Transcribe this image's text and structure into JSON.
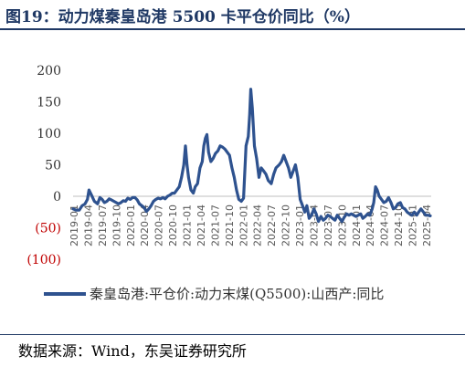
{
  "figure": {
    "title": "图19：动力煤秦皇岛港 5500 卡平仓价同比（%）",
    "source": "数据来源：Wind，东吴证券研究所"
  },
  "colors": {
    "series": "#2e528f",
    "negative_label": "#c00000",
    "axis": "#333333",
    "title": "#1f3864"
  },
  "chart_data": {
    "type": "line",
    "title": "",
    "xlabel": "",
    "ylabel": "",
    "ylim": [
      -100,
      200
    ],
    "yticks": [
      {
        "value": 200,
        "label": "200",
        "negative": false
      },
      {
        "value": 150,
        "label": "150",
        "negative": false
      },
      {
        "value": 100,
        "label": "100",
        "negative": false
      },
      {
        "value": 50,
        "label": "50",
        "negative": false
      },
      {
        "value": 0,
        "label": "0",
        "negative": false
      },
      {
        "value": -50,
        "label": "(50)",
        "negative": true
      },
      {
        "value": -100,
        "label": "(100)",
        "negative": true
      }
    ],
    "x_tick_labels": [
      "2019-01",
      "2019-04",
      "2019-07",
      "2019-10",
      "2020-01",
      "2020-04",
      "2020-07",
      "2020-10",
      "2021-01",
      "2021-04",
      "2021-07",
      "2021-10",
      "2022-01",
      "2022-04",
      "2022-07",
      "2022-10",
      "2023-01",
      "2023-04",
      "2023-07",
      "2023-10",
      "2024-01",
      "2024-04",
      "2024-07",
      "2024-10",
      "2025-01",
      "2025-04"
    ],
    "x_range": [
      "2019-01-01",
      "2025-05-31"
    ],
    "grid": false,
    "legend_position": "bottom",
    "series": [
      {
        "name": "秦皇岛港:平仓价:动力末煤(Q5500):山西产:同比",
        "points": [
          [
            "2019-01-01",
            -20
          ],
          [
            "2019-01-20",
            -22
          ],
          [
            "2019-02-10",
            -22
          ],
          [
            "2019-03-01",
            -15
          ],
          [
            "2019-03-20",
            -12
          ],
          [
            "2019-04-05",
            -5
          ],
          [
            "2019-04-15",
            10
          ],
          [
            "2019-05-01",
            2
          ],
          [
            "2019-05-20",
            -8
          ],
          [
            "2019-06-10",
            -12
          ],
          [
            "2019-06-25",
            -2
          ],
          [
            "2019-07-10",
            -5
          ],
          [
            "2019-07-25",
            -10
          ],
          [
            "2019-08-10",
            -8
          ],
          [
            "2019-08-25",
            -4
          ],
          [
            "2019-09-10",
            -6
          ],
          [
            "2019-09-25",
            -8
          ],
          [
            "2019-10-10",
            -10
          ],
          [
            "2019-10-25",
            -12
          ],
          [
            "2019-11-10",
            -10
          ],
          [
            "2019-11-25",
            -7
          ],
          [
            "2019-12-10",
            -8
          ],
          [
            "2019-12-25",
            -3
          ],
          [
            "2020-01-10",
            -5
          ],
          [
            "2020-01-25",
            -2
          ],
          [
            "2020-02-10",
            -2
          ],
          [
            "2020-02-25",
            -6
          ],
          [
            "2020-03-10",
            -12
          ],
          [
            "2020-03-25",
            -15
          ],
          [
            "2020-04-10",
            -18
          ],
          [
            "2020-04-25",
            -24
          ],
          [
            "2020-05-10",
            -20
          ],
          [
            "2020-05-25",
            -15
          ],
          [
            "2020-06-10",
            -8
          ],
          [
            "2020-06-25",
            -5
          ],
          [
            "2020-07-10",
            -3
          ],
          [
            "2020-07-25",
            -4
          ],
          [
            "2020-08-10",
            -2
          ],
          [
            "2020-08-25",
            -4
          ],
          [
            "2020-09-10",
            0
          ],
          [
            "2020-09-25",
            2
          ],
          [
            "2020-10-10",
            5
          ],
          [
            "2020-10-25",
            5
          ],
          [
            "2020-11-10",
            10
          ],
          [
            "2020-11-25",
            15
          ],
          [
            "2020-12-10",
            30
          ],
          [
            "2020-12-25",
            50
          ],
          [
            "2021-01-05",
            80
          ],
          [
            "2021-01-15",
            50
          ],
          [
            "2021-01-25",
            30
          ],
          [
            "2021-02-10",
            10
          ],
          [
            "2021-02-25",
            5
          ],
          [
            "2021-03-10",
            15
          ],
          [
            "2021-03-25",
            20
          ],
          [
            "2021-04-10",
            45
          ],
          [
            "2021-04-25",
            55
          ],
          [
            "2021-05-05",
            80
          ],
          [
            "2021-05-15",
            92
          ],
          [
            "2021-05-25",
            98
          ],
          [
            "2021-06-05",
            70
          ],
          [
            "2021-06-20",
            55
          ],
          [
            "2021-07-05",
            60
          ],
          [
            "2021-07-20",
            68
          ],
          [
            "2021-08-05",
            72
          ],
          [
            "2021-08-20",
            80
          ],
          [
            "2021-09-05",
            78
          ],
          [
            "2021-09-20",
            75
          ],
          [
            "2021-10-05",
            70
          ],
          [
            "2021-10-20",
            65
          ],
          [
            "2021-11-05",
            45
          ],
          [
            "2021-11-20",
            30
          ],
          [
            "2021-12-05",
            10
          ],
          [
            "2021-12-20",
            -5
          ],
          [
            "2022-01-05",
            -8
          ],
          [
            "2022-01-20",
            -3
          ],
          [
            "2022-02-05",
            80
          ],
          [
            "2022-02-20",
            95
          ],
          [
            "2022-03-01",
            130
          ],
          [
            "2022-03-08",
            170
          ],
          [
            "2022-03-18",
            140
          ],
          [
            "2022-04-01",
            80
          ],
          [
            "2022-04-15",
            60
          ],
          [
            "2022-05-01",
            30
          ],
          [
            "2022-05-15",
            45
          ],
          [
            "2022-06-01",
            40
          ],
          [
            "2022-06-15",
            35
          ],
          [
            "2022-07-01",
            25
          ],
          [
            "2022-07-20",
            20
          ],
          [
            "2022-08-05",
            35
          ],
          [
            "2022-08-20",
            45
          ],
          [
            "2022-09-10",
            50
          ],
          [
            "2022-09-25",
            55
          ],
          [
            "2022-10-10",
            65
          ],
          [
            "2022-10-25",
            55
          ],
          [
            "2022-11-10",
            45
          ],
          [
            "2022-11-25",
            30
          ],
          [
            "2022-12-10",
            40
          ],
          [
            "2022-12-25",
            50
          ],
          [
            "2023-01-10",
            30
          ],
          [
            "2023-01-25",
            -5
          ],
          [
            "2023-02-10",
            -15
          ],
          [
            "2023-02-25",
            -25
          ],
          [
            "2023-03-10",
            -15
          ],
          [
            "2023-03-25",
            -35
          ],
          [
            "2023-04-10",
            -30
          ],
          [
            "2023-04-25",
            -20
          ],
          [
            "2023-05-10",
            -28
          ],
          [
            "2023-05-25",
            -40
          ],
          [
            "2023-06-10",
            -32
          ],
          [
            "2023-06-25",
            -38
          ],
          [
            "2023-07-10",
            -35
          ],
          [
            "2023-07-25",
            -30
          ],
          [
            "2023-08-10",
            -32
          ],
          [
            "2023-08-25",
            -35
          ],
          [
            "2023-09-10",
            -38
          ],
          [
            "2023-09-25",
            -30
          ],
          [
            "2023-10-10",
            -35
          ],
          [
            "2023-10-25",
            -40
          ],
          [
            "2023-11-10",
            -33
          ],
          [
            "2023-11-25",
            -28
          ],
          [
            "2023-12-10",
            -30
          ],
          [
            "2023-12-25",
            -28
          ],
          [
            "2024-01-10",
            -30
          ],
          [
            "2024-01-25",
            -32
          ],
          [
            "2024-02-10",
            -30
          ],
          [
            "2024-02-25",
            -28
          ],
          [
            "2024-03-10",
            -35
          ],
          [
            "2024-03-25",
            -32
          ],
          [
            "2024-04-10",
            -28
          ],
          [
            "2024-04-25",
            -30
          ],
          [
            "2024-05-10",
            -20
          ],
          [
            "2024-05-20",
            -10
          ],
          [
            "2024-06-01",
            15
          ],
          [
            "2024-06-12",
            10
          ],
          [
            "2024-06-25",
            0
          ],
          [
            "2024-07-10",
            -5
          ],
          [
            "2024-07-25",
            -10
          ],
          [
            "2024-08-10",
            -8
          ],
          [
            "2024-08-25",
            -2
          ],
          [
            "2024-09-10",
            -10
          ],
          [
            "2024-09-25",
            -20
          ],
          [
            "2024-10-10",
            -18
          ],
          [
            "2024-10-25",
            -12
          ],
          [
            "2024-11-10",
            -10
          ],
          [
            "2024-11-25",
            -18
          ],
          [
            "2024-12-10",
            -20
          ],
          [
            "2024-12-25",
            -25
          ],
          [
            "2025-01-10",
            -28
          ],
          [
            "2025-01-25",
            -30
          ],
          [
            "2025-02-10",
            -25
          ],
          [
            "2025-02-25",
            -30
          ],
          [
            "2025-03-10",
            -25
          ],
          [
            "2025-03-25",
            -20
          ],
          [
            "2025-04-10",
            -25
          ],
          [
            "2025-04-25",
            -30
          ],
          [
            "2025-05-10",
            -30
          ],
          [
            "2025-05-25",
            -31
          ]
        ]
      }
    ]
  }
}
